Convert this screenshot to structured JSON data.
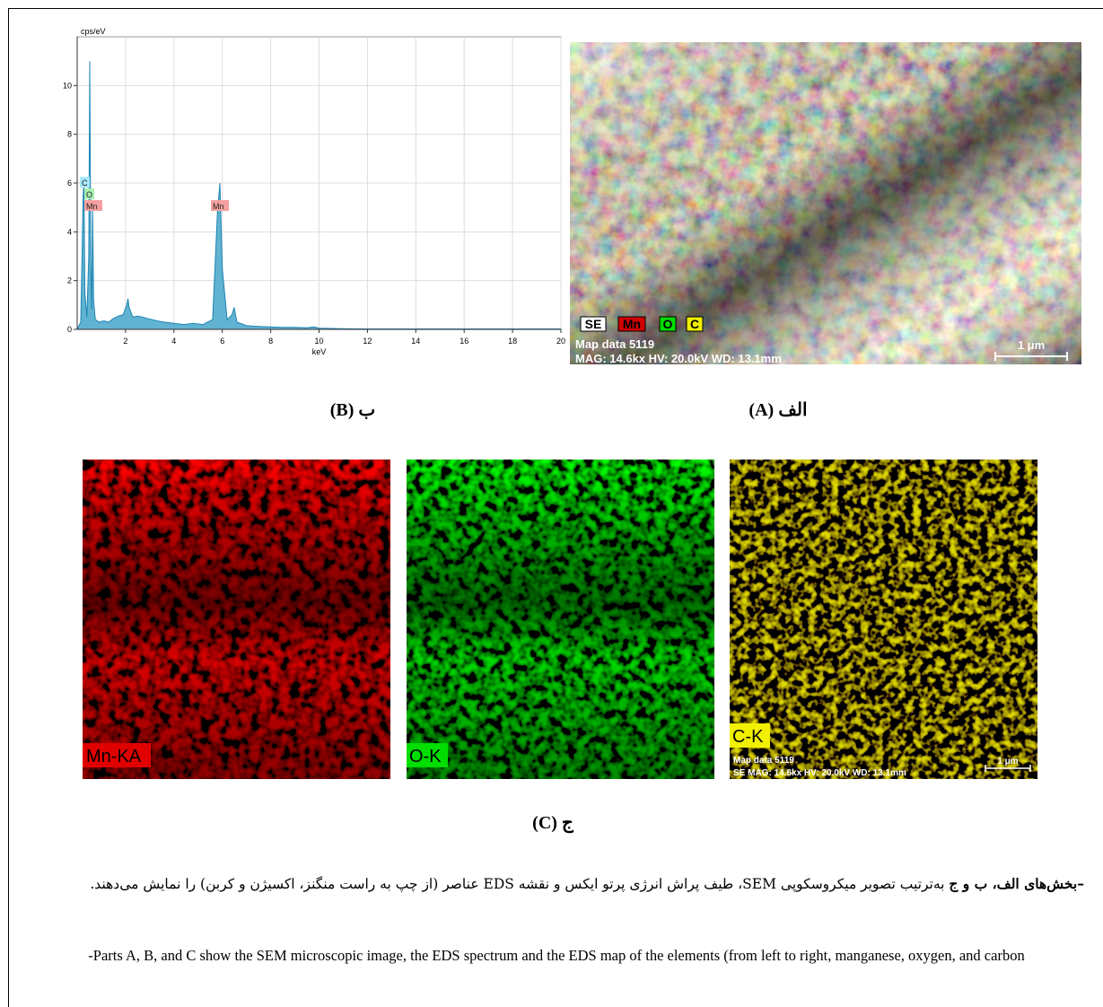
{
  "chart_data": {
    "type": "area",
    "x_label": "keV",
    "y_label": "cps/eV",
    "color": "#45a6c9",
    "x": [
      0,
      0.15,
      0.25,
      0.28,
      0.32,
      0.4,
      0.48,
      0.52,
      0.56,
      0.6,
      0.64,
      0.68,
      0.75,
      0.9,
      1.1,
      1.3,
      1.5,
      1.7,
      1.9,
      2.05,
      2.1,
      2.15,
      2.3,
      2.5,
      2.7,
      2.9,
      3.1,
      3.3,
      3.6,
      4.0,
      4.4,
      4.8,
      5.2,
      5.6,
      5.8,
      5.9,
      6.0,
      6.2,
      6.4,
      6.49,
      6.6,
      7.0,
      7.5,
      8,
      8.5,
      9,
      9.5,
      9.8,
      10,
      11,
      12,
      14,
      16,
      18,
      20
    ],
    "values": [
      0,
      0.3,
      5.5,
      6.0,
      1.5,
      0.5,
      3,
      11,
      3,
      0.8,
      5.0,
      1.2,
      0.4,
      0.3,
      0.35,
      0.3,
      0.45,
      0.55,
      0.6,
      1.0,
      1.25,
      0.9,
      0.5,
      0.55,
      0.5,
      0.45,
      0.4,
      0.35,
      0.3,
      0.25,
      0.2,
      0.25,
      0.2,
      0.4,
      4.8,
      6.0,
      2.5,
      0.4,
      0.6,
      0.9,
      0.3,
      0.15,
      0.12,
      0.1,
      0.08,
      0.08,
      0.07,
      0.1,
      0.05,
      0.03,
      0.02,
      0.02,
      0.02,
      0.02,
      0.02
    ],
    "peak_labels": [
      "C",
      "O",
      "Mn",
      "Mn"
    ],
    "xlim": [
      0,
      20
    ],
    "xticks": [
      2,
      4,
      6,
      8,
      10,
      12,
      14,
      16,
      18,
      20
    ],
    "ylim": [
      0,
      12
    ],
    "yticks": [
      0,
      2,
      4,
      6,
      8,
      10
    ],
    "grid": true
  },
  "figure": {
    "captions": {
      "a": "الف (A)",
      "b": "ب (B)",
      "c": "ج (C)"
    },
    "sem": {
      "legend": [
        "SE",
        "Mn",
        "O",
        "C"
      ],
      "map_data": "Map data 5119",
      "info": "MAG: 14.6kx  HV: 20.0kV  WD: 13.1mm",
      "scale": "1 μm"
    },
    "maps": [
      "Mn-KA",
      "O-K",
      "C-K"
    ],
    "map_info": "SE  MAG: 14.6kx  HV: 20.0kV  WD: 13.1mm",
    "caption_fa": {
      "bold": "–بخش‌های الف، ب و ج",
      "text": "به‌ترتیب تصویر میکروسکوپی SEM، طیف پراش انرژی پرتو ایکس و نقشه EDS عناصر (از چپ به راست منگنز، اکسیژن و کربن) را نمایش می‌دهند."
    },
    "caption_en": "-Parts A, B, and C show the SEM microscopic image, the EDS spectrum and the EDS map of the elements (from left to right, manganese, oxygen, and carbon"
  }
}
